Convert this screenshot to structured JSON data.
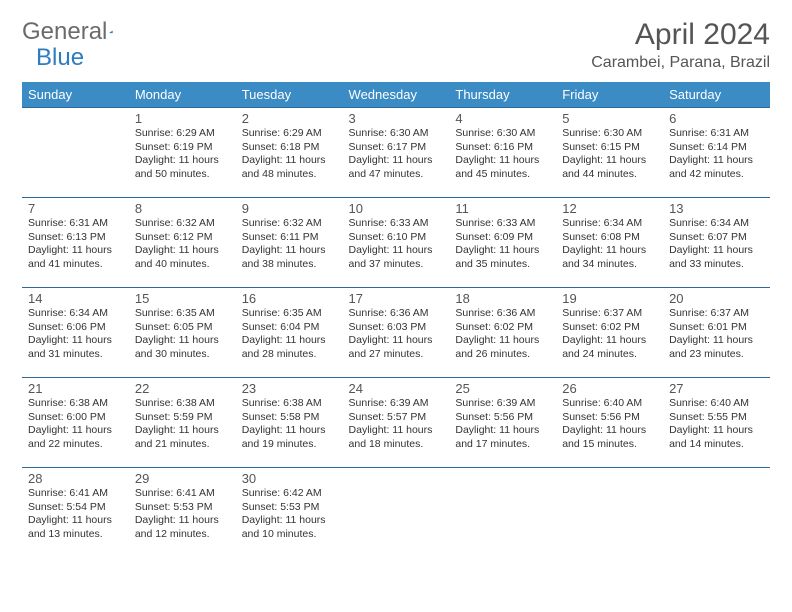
{
  "brand": {
    "first": "General",
    "second": "Blue"
  },
  "title": "April 2024",
  "location": "Carambei, Parana, Brazil",
  "colors": {
    "header_bg": "#3b8bc4",
    "header_text": "#ffffff",
    "border": "#2d6a9e",
    "text": "#333333",
    "muted": "#555555",
    "brand_gray": "#6b6b6b",
    "brand_blue": "#2d7cc0",
    "background": "#ffffff"
  },
  "weekdays": [
    "Sunday",
    "Monday",
    "Tuesday",
    "Wednesday",
    "Thursday",
    "Friday",
    "Saturday"
  ],
  "weeks": [
    [
      null,
      {
        "n": "1",
        "sr": "6:29 AM",
        "ss": "6:19 PM",
        "dl": "11 hours and 50 minutes."
      },
      {
        "n": "2",
        "sr": "6:29 AM",
        "ss": "6:18 PM",
        "dl": "11 hours and 48 minutes."
      },
      {
        "n": "3",
        "sr": "6:30 AM",
        "ss": "6:17 PM",
        "dl": "11 hours and 47 minutes."
      },
      {
        "n": "4",
        "sr": "6:30 AM",
        "ss": "6:16 PM",
        "dl": "11 hours and 45 minutes."
      },
      {
        "n": "5",
        "sr": "6:30 AM",
        "ss": "6:15 PM",
        "dl": "11 hours and 44 minutes."
      },
      {
        "n": "6",
        "sr": "6:31 AM",
        "ss": "6:14 PM",
        "dl": "11 hours and 42 minutes."
      }
    ],
    [
      {
        "n": "7",
        "sr": "6:31 AM",
        "ss": "6:13 PM",
        "dl": "11 hours and 41 minutes."
      },
      {
        "n": "8",
        "sr": "6:32 AM",
        "ss": "6:12 PM",
        "dl": "11 hours and 40 minutes."
      },
      {
        "n": "9",
        "sr": "6:32 AM",
        "ss": "6:11 PM",
        "dl": "11 hours and 38 minutes."
      },
      {
        "n": "10",
        "sr": "6:33 AM",
        "ss": "6:10 PM",
        "dl": "11 hours and 37 minutes."
      },
      {
        "n": "11",
        "sr": "6:33 AM",
        "ss": "6:09 PM",
        "dl": "11 hours and 35 minutes."
      },
      {
        "n": "12",
        "sr": "6:34 AM",
        "ss": "6:08 PM",
        "dl": "11 hours and 34 minutes."
      },
      {
        "n": "13",
        "sr": "6:34 AM",
        "ss": "6:07 PM",
        "dl": "11 hours and 33 minutes."
      }
    ],
    [
      {
        "n": "14",
        "sr": "6:34 AM",
        "ss": "6:06 PM",
        "dl": "11 hours and 31 minutes."
      },
      {
        "n": "15",
        "sr": "6:35 AM",
        "ss": "6:05 PM",
        "dl": "11 hours and 30 minutes."
      },
      {
        "n": "16",
        "sr": "6:35 AM",
        "ss": "6:04 PM",
        "dl": "11 hours and 28 minutes."
      },
      {
        "n": "17",
        "sr": "6:36 AM",
        "ss": "6:03 PM",
        "dl": "11 hours and 27 minutes."
      },
      {
        "n": "18",
        "sr": "6:36 AM",
        "ss": "6:02 PM",
        "dl": "11 hours and 26 minutes."
      },
      {
        "n": "19",
        "sr": "6:37 AM",
        "ss": "6:02 PM",
        "dl": "11 hours and 24 minutes."
      },
      {
        "n": "20",
        "sr": "6:37 AM",
        "ss": "6:01 PM",
        "dl": "11 hours and 23 minutes."
      }
    ],
    [
      {
        "n": "21",
        "sr": "6:38 AM",
        "ss": "6:00 PM",
        "dl": "11 hours and 22 minutes."
      },
      {
        "n": "22",
        "sr": "6:38 AM",
        "ss": "5:59 PM",
        "dl": "11 hours and 21 minutes."
      },
      {
        "n": "23",
        "sr": "6:38 AM",
        "ss": "5:58 PM",
        "dl": "11 hours and 19 minutes."
      },
      {
        "n": "24",
        "sr": "6:39 AM",
        "ss": "5:57 PM",
        "dl": "11 hours and 18 minutes."
      },
      {
        "n": "25",
        "sr": "6:39 AM",
        "ss": "5:56 PM",
        "dl": "11 hours and 17 minutes."
      },
      {
        "n": "26",
        "sr": "6:40 AM",
        "ss": "5:56 PM",
        "dl": "11 hours and 15 minutes."
      },
      {
        "n": "27",
        "sr": "6:40 AM",
        "ss": "5:55 PM",
        "dl": "11 hours and 14 minutes."
      }
    ],
    [
      {
        "n": "28",
        "sr": "6:41 AM",
        "ss": "5:54 PM",
        "dl": "11 hours and 13 minutes."
      },
      {
        "n": "29",
        "sr": "6:41 AM",
        "ss": "5:53 PM",
        "dl": "11 hours and 12 minutes."
      },
      {
        "n": "30",
        "sr": "6:42 AM",
        "ss": "5:53 PM",
        "dl": "11 hours and 10 minutes."
      },
      null,
      null,
      null,
      null
    ]
  ],
  "labels": {
    "sunrise": "Sunrise: ",
    "sunset": "Sunset: ",
    "daylight": "Daylight: "
  }
}
